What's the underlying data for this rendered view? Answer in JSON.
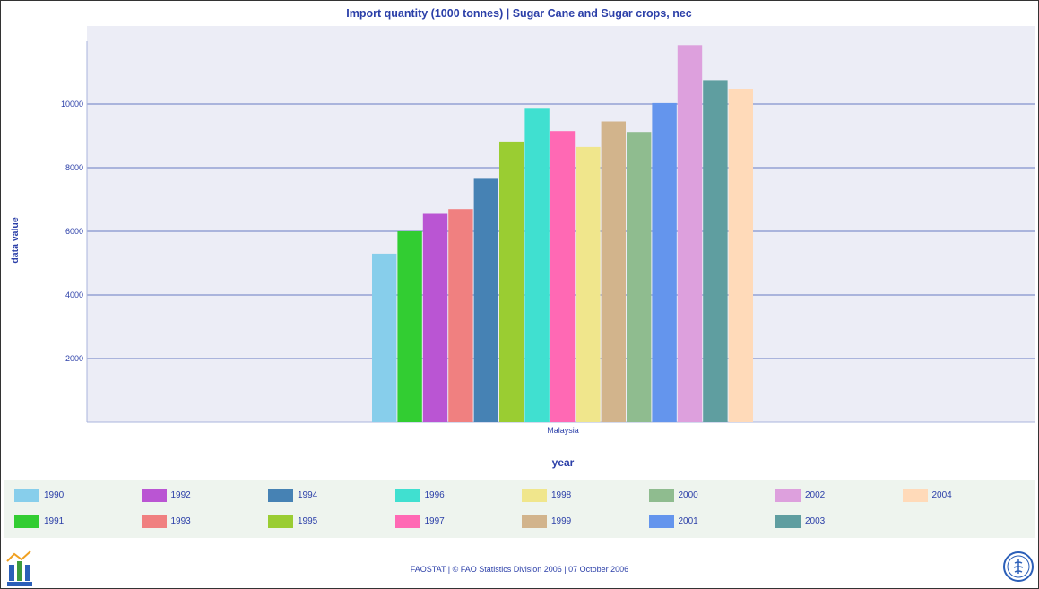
{
  "chart_data": {
    "type": "bar",
    "title": "Import quantity (1000 tonnes) | Sugar Cane and Sugar crops, nec",
    "xlabel": "year",
    "ylabel": "data value",
    "categories": [
      "Malaysia"
    ],
    "ylim": [
      0,
      12000
    ],
    "yticks": [
      2000,
      4000,
      6000,
      8000,
      10000
    ],
    "grid": true,
    "legend_position": "bottom",
    "series": [
      {
        "name": "1990",
        "values": [
          5300
        ],
        "color": "#87ceeb"
      },
      {
        "name": "1991",
        "values": [
          6000
        ],
        "color": "#32cd32"
      },
      {
        "name": "1992",
        "values": [
          6550
        ],
        "color": "#ba55d3"
      },
      {
        "name": "1993",
        "values": [
          6700
        ],
        "color": "#f08080"
      },
      {
        "name": "1994",
        "values": [
          7650
        ],
        "color": "#4682b4"
      },
      {
        "name": "1995",
        "values": [
          8820
        ],
        "color": "#9acd32"
      },
      {
        "name": "1996",
        "values": [
          9850
        ],
        "color": "#40e0d0"
      },
      {
        "name": "1997",
        "values": [
          9150
        ],
        "color": "#ff69b4"
      },
      {
        "name": "1998",
        "values": [
          8650
        ],
        "color": "#f0e68c"
      },
      {
        "name": "1999",
        "values": [
          9450
        ],
        "color": "#d2b48c"
      },
      {
        "name": "2000",
        "values": [
          9120
        ],
        "color": "#8fbc8f"
      },
      {
        "name": "2001",
        "values": [
          10030
        ],
        "color": "#6495ed"
      },
      {
        "name": "2002",
        "values": [
          11850
        ],
        "color": "#dda0dd"
      },
      {
        "name": "2003",
        "values": [
          10750
        ],
        "color": "#5f9ea0"
      },
      {
        "name": "2004",
        "values": [
          10480
        ],
        "color": "#ffdab9"
      }
    ]
  },
  "footer": {
    "credit": "FAOSTAT | © FAO Statistics Division 2006 | 07 October 2006",
    "faostat_logo_icon": "faostat-logo-icon",
    "fao_logo_icon": "fao-logo-icon"
  },
  "colors": {
    "plot_background": "#ecedf6",
    "gridline": "#aab4dc",
    "text": "#2b3fa8",
    "legend_background": "#eef4ee"
  }
}
